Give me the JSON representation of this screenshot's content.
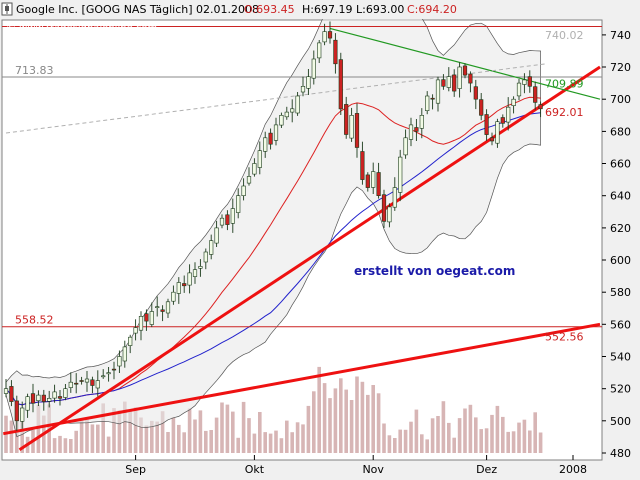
{
  "header": {
    "title": "Google Inc. [GOOG NAS  Täglich] 02.01.2008",
    "open_label": "O:693.45",
    "high_label": "H:697.19",
    "low_label": "L:693.00",
    "close_label": "C:694.20",
    "source": "© www.tradesignalonline.com"
  },
  "credit": "erstellt von oegeat.com",
  "colors": {
    "background": "#f0f0f0",
    "plot": "#ffffff",
    "trend": "#ee1111",
    "resistance": "#229922",
    "band": "#e8e8e8",
    "ma_short": "#dd2222",
    "ma_long": "#2222cc",
    "volume": "#d7b5b5"
  },
  "chart_data": {
    "type": "candlestick",
    "symbol": "GOOG",
    "interval": "daily",
    "grid": false,
    "ylim": [
      480,
      748
    ],
    "y_axis_position": "right",
    "y_ticks": [
      480,
      500,
      520,
      540,
      560,
      580,
      600,
      620,
      640,
      660,
      680,
      700,
      720,
      740
    ],
    "x_labels": [
      "Sep",
      "Okt",
      "Nov",
      "Dez",
      "2008"
    ],
    "closes": [
      520,
      512,
      500,
      508,
      515,
      511,
      516,
      512,
      514,
      518,
      514,
      520,
      524,
      523,
      525,
      526,
      522,
      525,
      528,
      530,
      532,
      540,
      546,
      552,
      558,
      565,
      562,
      568,
      571,
      568,
      574,
      580,
      586,
      584,
      592,
      594,
      596,
      605,
      612,
      620,
      626,
      622,
      632,
      640,
      646,
      652,
      660,
      668,
      676,
      672,
      684,
      690,
      692,
      694,
      702,
      708,
      714,
      725,
      735,
      742,
      738,
      722,
      694,
      678,
      690,
      670,
      650,
      645,
      655,
      640,
      624,
      633,
      645,
      664,
      676,
      684,
      680,
      690,
      702,
      700,
      712,
      708,
      714,
      705,
      720,
      715,
      710,
      700,
      690,
      678,
      674,
      686,
      685,
      695,
      700,
      710,
      712,
      708,
      698,
      694
    ],
    "price_labels": [
      {
        "value": 740.02,
        "label": "740.02",
        "color": "#b0b0b0"
      },
      {
        "value": 709.89,
        "label": "709.89",
        "color": "#229922"
      },
      {
        "value": 692.01,
        "label": "692.01",
        "color": "#cc2222"
      },
      {
        "value": 552.56,
        "label": "552.56",
        "color": "#cc2222"
      }
    ],
    "horizontal_levels": [
      {
        "value": 713.83,
        "label": "713.83",
        "color": "#888888"
      },
      {
        "value": 558.52,
        "label": "558.52",
        "color": "#cc2222"
      },
      {
        "value": 745.2,
        "label": "",
        "color": "#cc2222"
      }
    ]
  }
}
